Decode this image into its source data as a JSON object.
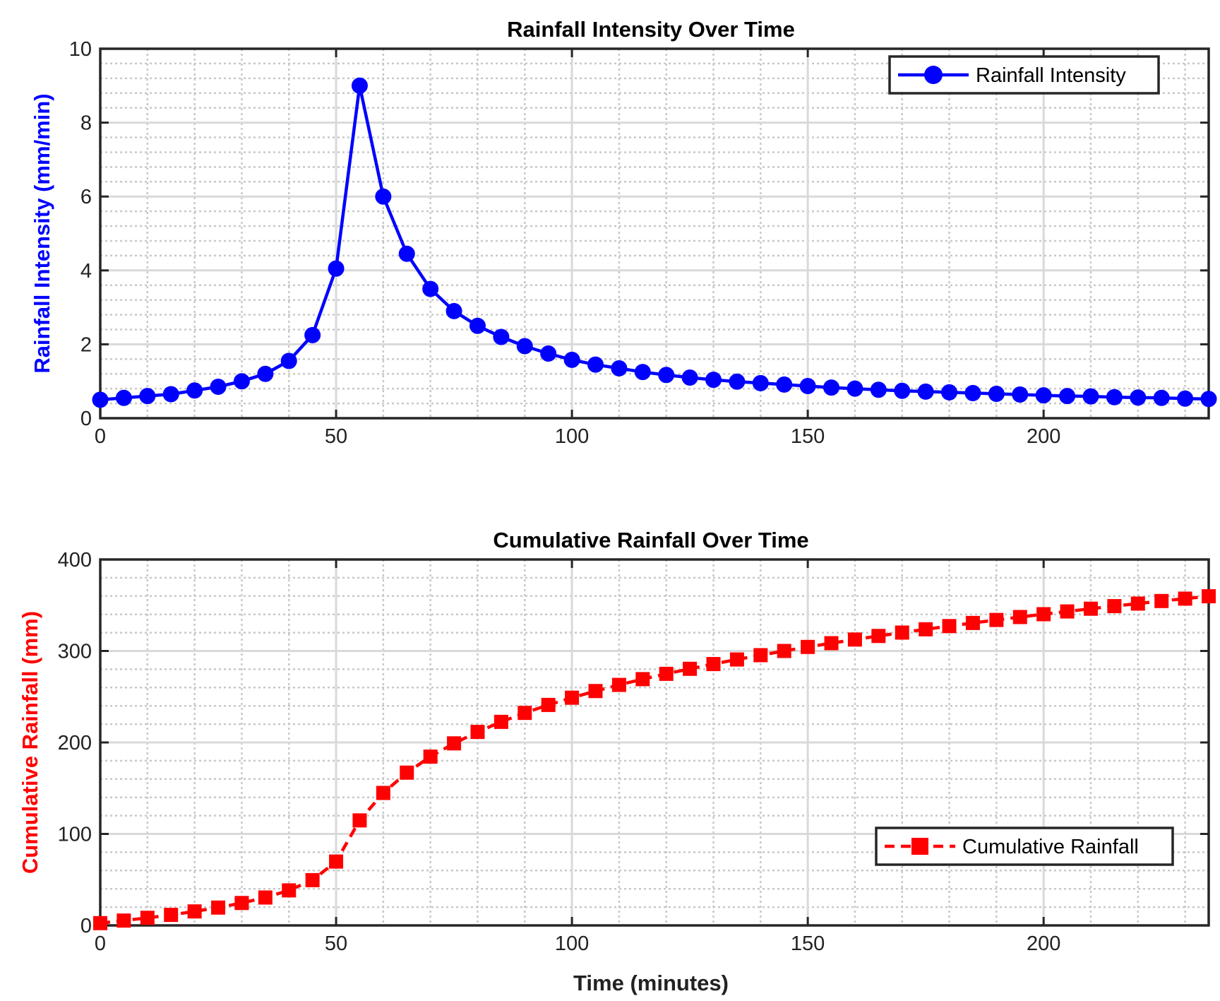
{
  "chart_data": [
    {
      "type": "line",
      "title": "Rainfall Intensity Over Time",
      "xlabel": "",
      "ylabel": "Rainfall Intensity (mm/min)",
      "xlim": [
        0,
        235
      ],
      "ylim": [
        0,
        10
      ],
      "xticks": [
        "0",
        "50",
        "100",
        "150",
        "200"
      ],
      "yticks": [
        "0",
        "2",
        "4",
        "6",
        "8",
        "10"
      ],
      "grid": "major and minor",
      "legend_position": "top-right",
      "series": [
        {
          "name": "Rainfall Intensity",
          "color": "#0000ff",
          "marker": "circle",
          "line_style": "solid",
          "x": [
            0,
            5,
            10,
            15,
            20,
            25,
            30,
            35,
            40,
            45,
            50,
            55,
            60,
            65,
            70,
            75,
            80,
            85,
            90,
            95,
            100,
            105,
            110,
            115,
            120,
            125,
            130,
            135,
            140,
            145,
            150,
            155,
            160,
            165,
            170,
            175,
            180,
            185,
            190,
            195,
            200,
            205,
            210,
            215,
            220,
            225,
            230,
            235
          ],
          "values": [
            0.5,
            0.55,
            0.6,
            0.65,
            0.75,
            0.85,
            1.0,
            1.2,
            1.55,
            2.25,
            4.05,
            9.0,
            6.0,
            4.45,
            3.5,
            2.9,
            2.5,
            2.2,
            1.95,
            1.75,
            1.58,
            1.45,
            1.35,
            1.25,
            1.17,
            1.1,
            1.04,
            0.99,
            0.95,
            0.91,
            0.87,
            0.83,
            0.8,
            0.77,
            0.74,
            0.72,
            0.7,
            0.68,
            0.66,
            0.64,
            0.62,
            0.6,
            0.59,
            0.57,
            0.56,
            0.55,
            0.53,
            0.52
          ]
        }
      ]
    },
    {
      "type": "line",
      "title": "Cumulative Rainfall Over Time",
      "xlabel": "Time (minutes)",
      "ylabel": "Cumulative Rainfall (mm)",
      "xlim": [
        0,
        235
      ],
      "ylim": [
        0,
        400
      ],
      "xticks": [
        "0",
        "50",
        "100",
        "150",
        "200"
      ],
      "yticks": [
        "0",
        "100",
        "200",
        "300",
        "400"
      ],
      "grid": "major and minor",
      "legend_position": "bottom-right",
      "series": [
        {
          "name": "Cumulative Rainfall",
          "color": "#ff0000",
          "marker": "square",
          "line_style": "dashed",
          "x": [
            0,
            5,
            10,
            15,
            20,
            25,
            30,
            35,
            40,
            45,
            50,
            55,
            60,
            65,
            70,
            75,
            80,
            85,
            90,
            95,
            100,
            105,
            110,
            115,
            120,
            125,
            130,
            135,
            140,
            145,
            150,
            155,
            160,
            165,
            170,
            175,
            180,
            185,
            190,
            195,
            200,
            205,
            210,
            215,
            220,
            225,
            230,
            235
          ],
          "values": [
            2.5,
            5.3,
            8.3,
            11.5,
            15.3,
            19.5,
            24.5,
            30.5,
            38.3,
            49.5,
            69.8,
            114.8,
            144.8,
            167,
            184.5,
            199,
            211.5,
            222.5,
            232.3,
            241,
            248.9,
            256.2,
            262.9,
            269.2,
            275,
            280.5,
            285.7,
            290.7,
            295.4,
            300,
            304.4,
            308.5,
            312.5,
            316.4,
            320.1,
            323.7,
            327.2,
            330.6,
            333.9,
            337.1,
            340.2,
            343.2,
            346.2,
            349,
            351.8,
            354.6,
            357.2,
            359.8
          ]
        }
      ]
    }
  ]
}
